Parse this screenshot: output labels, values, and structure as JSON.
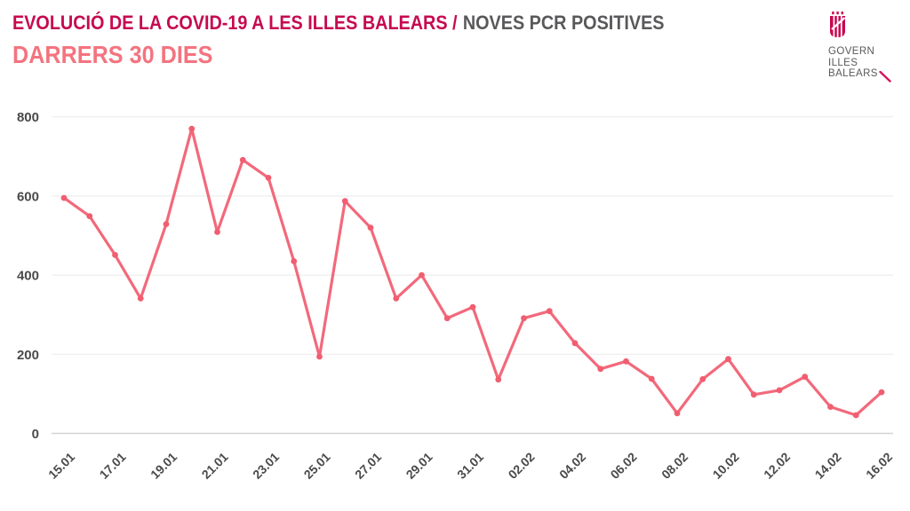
{
  "header": {
    "title_main": "EVOLUCIÓ DE LA COVID-19 A LES ILLES BALEARS /",
    "title_secondary": "NOVES PCR POSITIVES",
    "subtitle": "DARRERS 30 DIES"
  },
  "logo": {
    "lines": [
      "GOVERN",
      "ILLES",
      "BALEARS"
    ]
  },
  "colors": {
    "title_accent": "#C60A4F",
    "title_gray": "#59595B",
    "subtitle_pink": "#F3747F",
    "line": "#F2697B",
    "marker": "#F05E70",
    "grid": "#EDEDED",
    "axis_line": "#D4D4D4",
    "tick_text": "#4A4A4C",
    "crest_crimson": "#C9074F",
    "logo_slash": "#D8135C"
  },
  "chart_data": {
    "type": "line",
    "title": "EVOLUCIÓ DE LA COVID-19 A LES ILLES BALEARS / NOVES PCR POSITIVES — DARRERS 30 DIES",
    "xlabel": "",
    "ylabel": "",
    "x_tick_labels": [
      "15.01",
      "17.01",
      "19.01",
      "21.01",
      "23.01",
      "25.01",
      "27.01",
      "29.01",
      "31.01",
      "02.02",
      "04.02",
      "06.02",
      "08.02",
      "10.02",
      "12.02",
      "14.02",
      "16.02"
    ],
    "points_per_tick": 2,
    "values": [
      595,
      549,
      451,
      341,
      529,
      770,
      509,
      691,
      646,
      435,
      194,
      587,
      520,
      341,
      400,
      291,
      319,
      136,
      291,
      309,
      228,
      163,
      182,
      138,
      51,
      137,
      188,
      98,
      109,
      143,
      67,
      46,
      104
    ],
    "y_ticks": [
      0,
      200,
      400,
      600,
      800
    ],
    "ylim": [
      0,
      800
    ],
    "grid": "horizontal",
    "legend": "none"
  }
}
